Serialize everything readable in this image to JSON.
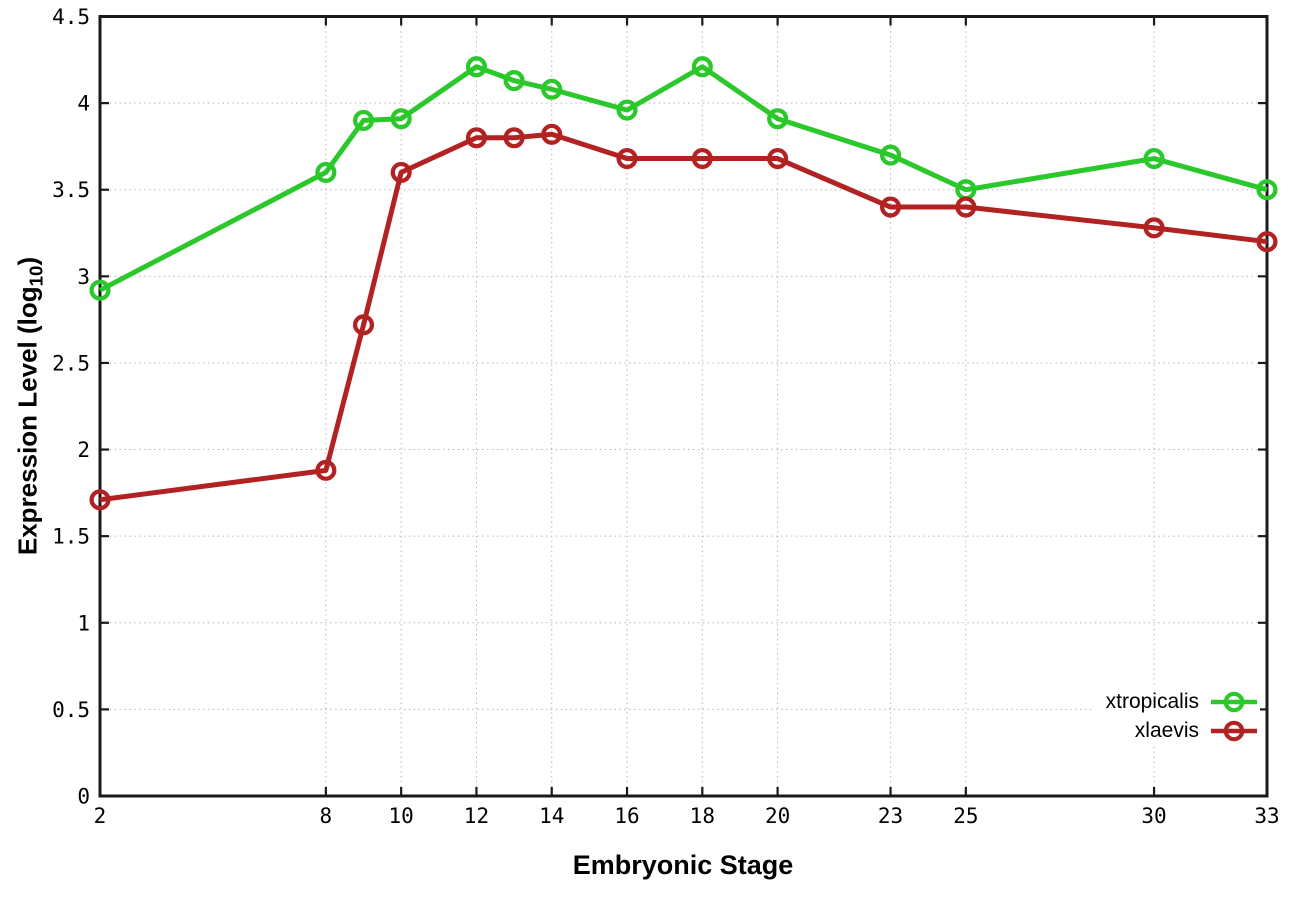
{
  "figure": {
    "xlabel": "Embryonic Stage",
    "ylabel_main": "Expression Level (log",
    "ylabel_sub": "10",
    "ylabel_close": ")"
  },
  "colors": {
    "xtropicalis": "#2bc82b",
    "xlaevis": "#b22222",
    "border": "#1a1a1a",
    "grid": "#b8b8b8",
    "text": "#000000"
  },
  "chart_data": {
    "type": "line",
    "title": "",
    "xlabel": "Embryonic Stage",
    "ylabel": "Expression Level (log10)",
    "x": [
      2,
      8,
      9,
      10,
      12,
      13,
      14,
      16,
      18,
      20,
      23,
      25,
      30,
      33
    ],
    "series": [
      {
        "name": "xtropicalis",
        "color": "#2bc82b",
        "marker": "open-circle",
        "values": [
          2.92,
          3.6,
          3.9,
          3.91,
          4.21,
          4.13,
          4.08,
          3.96,
          4.21,
          3.91,
          3.7,
          3.5,
          3.68,
          3.5
        ]
      },
      {
        "name": "xlaevis",
        "color": "#b22222",
        "marker": "open-circle",
        "values": [
          1.71,
          1.88,
          2.72,
          3.6,
          3.8,
          3.8,
          3.82,
          3.68,
          3.68,
          3.68,
          3.4,
          3.4,
          3.28,
          3.2
        ]
      }
    ],
    "xlim": [
      2,
      33
    ],
    "ylim": [
      0,
      4.5
    ],
    "xticks": [
      2,
      8,
      10,
      12,
      14,
      16,
      18,
      20,
      23,
      25,
      30,
      33
    ],
    "xtick_labels": [
      "2",
      "8",
      "10",
      "12",
      "14",
      "16",
      "18",
      "20",
      "23",
      "25",
      "30",
      "33"
    ],
    "yticks": [
      0,
      0.5,
      1,
      1.5,
      2,
      2.5,
      3,
      3.5,
      4,
      4.5
    ],
    "ytick_labels": [
      "0",
      "0.5",
      "1",
      "1.5",
      "2",
      "2.5",
      "3",
      "3.5",
      "4",
      "4.5"
    ],
    "grid": true,
    "grid_style": "dotted",
    "legend_position": "bottom-right"
  }
}
